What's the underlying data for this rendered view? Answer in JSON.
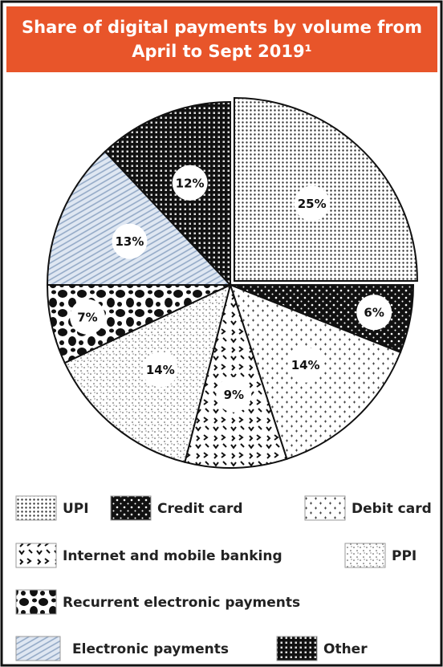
{
  "chart_data": {
    "type": "pie",
    "title": "Share of digital payments by volume from April to Sept 2019¹",
    "categories": [
      "UPI",
      "Credit card",
      "Debit card",
      "Internet and mobile banking",
      "PPI",
      "Recurrent electronic payments",
      "Electronic payments",
      "Other"
    ],
    "values": [
      25,
      6,
      14,
      9,
      14,
      7,
      13,
      12
    ],
    "value_labels": [
      "25%",
      "6%",
      "14%",
      "9%",
      "14%",
      "7%",
      "13%",
      "12%"
    ]
  }
}
